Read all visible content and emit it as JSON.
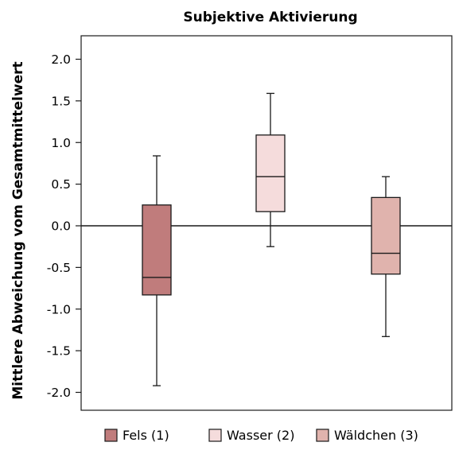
{
  "chart_data": {
    "type": "boxplot",
    "title": "Subjektive Aktivierung",
    "xlabel": "",
    "ylabel": "Mittlere Abweichung vom Gesamtmittelwert",
    "ylim": [
      -2.2,
      2.2
    ],
    "yticks": [
      "2.0",
      "1.5",
      "1.0",
      "0.5",
      "0.0",
      "-0.5",
      "-1.0",
      "-1.5",
      "-2.0"
    ],
    "ytick_values": [
      2.0,
      1.5,
      1.0,
      0.5,
      0.0,
      -0.5,
      -1.0,
      -1.5,
      -2.0
    ],
    "reference_line": 0.0,
    "grid": false,
    "legend_position": "bottom",
    "series": [
      {
        "name": "Fels (1)",
        "min": -1.92,
        "q1": -0.83,
        "median": -0.62,
        "q3": 0.25,
        "max": 0.84,
        "color": "#c07c7c"
      },
      {
        "name": "Wasser (2)",
        "min": -0.25,
        "q1": 0.17,
        "median": 0.59,
        "q3": 1.09,
        "max": 1.59,
        "color": "#f5dcdc"
      },
      {
        "name": "Wäldchen (3)",
        "min": -1.33,
        "q1": -0.58,
        "median": -0.33,
        "q3": 0.34,
        "max": 0.59,
        "color": "#e0b3ad"
      }
    ]
  }
}
